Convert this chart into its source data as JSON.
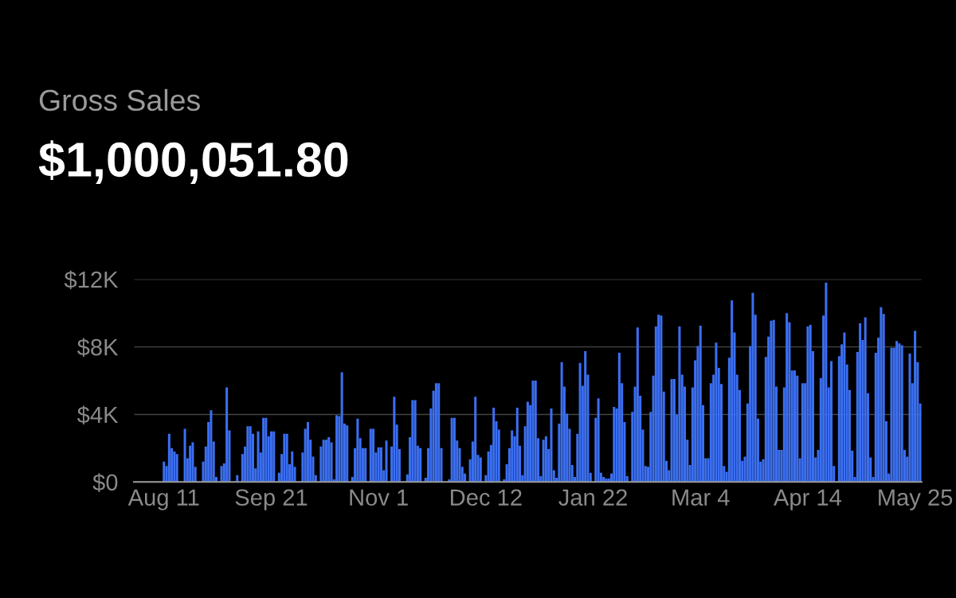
{
  "chart_data": {
    "type": "bar",
    "title": "Gross Sales",
    "subtitle": "$1,000,051.80",
    "categories": [
      null,
      null,
      null,
      null,
      null,
      null,
      null,
      null,
      null,
      null,
      null,
      "Aug 11",
      null,
      null,
      null,
      null,
      null,
      null,
      null,
      null,
      null,
      null,
      null,
      null,
      null,
      null,
      null,
      null,
      null,
      null,
      null,
      null,
      null,
      null,
      null,
      null,
      null,
      null,
      null,
      null,
      null,
      null,
      null,
      null,
      null,
      null,
      null,
      null,
      null,
      null,
      null,
      null,
      "Sep 21",
      null,
      null,
      null,
      null,
      null,
      null,
      null,
      null,
      null,
      null,
      null,
      null,
      null,
      null,
      null,
      null,
      null,
      null,
      null,
      null,
      null,
      null,
      null,
      null,
      null,
      null,
      null,
      null,
      null,
      null,
      null,
      null,
      null,
      null,
      null,
      null,
      null,
      null,
      null,
      null,
      "Nov 1",
      null,
      null,
      null,
      null,
      null,
      null,
      null,
      null,
      null,
      null,
      null,
      null,
      null,
      null,
      null,
      null,
      null,
      null,
      null,
      null,
      null,
      null,
      null,
      null,
      null,
      null,
      null,
      null,
      null,
      null,
      null,
      null,
      null,
      null,
      null,
      null,
      null,
      null,
      null,
      null,
      "Dec 12",
      null,
      null,
      null,
      null,
      null,
      null,
      null,
      null,
      null,
      null,
      null,
      null,
      null,
      null,
      null,
      null,
      null,
      null,
      null,
      null,
      null,
      null,
      null,
      null,
      null,
      null,
      null,
      null,
      null,
      null,
      null,
      null,
      null,
      null,
      null,
      null,
      null,
      null,
      null,
      null,
      "Jan 22",
      null,
      null,
      null,
      null,
      null,
      null,
      null,
      null,
      null,
      null,
      null,
      null,
      null,
      null,
      null,
      null,
      null,
      null,
      null,
      null,
      null,
      null,
      null,
      null,
      null,
      null,
      null,
      null,
      null,
      null,
      null,
      null,
      null,
      null,
      null,
      null,
      null,
      null,
      null,
      null,
      "Mar 4",
      null,
      null,
      null,
      null,
      null,
      null,
      null,
      null,
      null,
      null,
      null,
      null,
      null,
      null,
      null,
      null,
      null,
      null,
      null,
      null,
      null,
      null,
      null,
      null,
      null,
      null,
      null,
      null,
      null,
      null,
      null,
      null,
      null,
      null,
      null,
      null,
      null,
      null,
      null,
      null,
      "Apr 14",
      null,
      null,
      null,
      null,
      null,
      null,
      null,
      null,
      null,
      null,
      null,
      null,
      null,
      null,
      null,
      null,
      null,
      null,
      null,
      null,
      null,
      null,
      null,
      null,
      null,
      null,
      null,
      null,
      null,
      null,
      null,
      null,
      null,
      null,
      null,
      null,
      null,
      null,
      null,
      null,
      "May 25",
      null,
      null
    ],
    "values": [
      0,
      0,
      0,
      0,
      0,
      0,
      0,
      0,
      0,
      0,
      0,
      1200,
      950,
      2850,
      2000,
      1800,
      1650,
      0,
      0,
      3150,
      1400,
      2150,
      2350,
      900,
      0,
      0,
      1200,
      2100,
      3550,
      4250,
      2400,
      300,
      0,
      950,
      1100,
      5600,
      3050,
      0,
      0,
      400,
      0,
      1650,
      2100,
      3300,
      3300,
      2850,
      800,
      3000,
      1750,
      3800,
      3800,
      2700,
      3000,
      3000,
      0,
      550,
      1650,
      2850,
      2850,
      1050,
      1800,
      900,
      null,
      0,
      1750,
      3150,
      3550,
      2500,
      1500,
      400,
      0,
      2100,
      2500,
      2500,
      2650,
      2350,
      150,
      3950,
      3900,
      6500,
      3450,
      3350,
      0,
      300,
      2000,
      3750,
      2600,
      2000,
      2000,
      0,
      3150,
      3150,
      1750,
      2050,
      2050,
      700,
      2450,
      null,
      2100,
      5050,
      3400,
      1950,
      0,
      0,
      450,
      2650,
      4850,
      4850,
      2150,
      2000,
      0,
      250,
      2000,
      4350,
      5400,
      5850,
      5850,
      2000,
      0,
      0,
      150,
      3800,
      3800,
      2450,
      2000,
      900,
      500,
      null,
      1350,
      2400,
      5050,
      1600,
      1450,
      0,
      400,
      1800,
      2200,
      4400,
      3600,
      3100,
      0,
      150,
      1050,
      2000,
      3050,
      2700,
      4400,
      2150,
      400,
      3300,
      4750,
      4550,
      6000,
      6000,
      2600,
      350,
      2500,
      2700,
      1950,
      4350,
      700,
      250,
      3450,
      7100,
      5650,
      4050,
      3150,
      1000,
      300,
      2850,
      7050,
      5700,
      7750,
      6350,
      550,
      null,
      3800,
      4950,
      550,
      300,
      200,
      200,
      500,
      4450,
      4350,
      7650,
      5850,
      3550,
      350,
      null,
      4150,
      5650,
      9150,
      5100,
      3100,
      950,
      900,
      4150,
      6300,
      9200,
      9900,
      9850,
      5350,
      1250,
      700,
      6100,
      6100,
      4000,
      9200,
      6350,
      5650,
      2500,
      1000,
      5600,
      7200,
      8050,
      9250,
      4550,
      1400,
      1400,
      5850,
      6350,
      8250,
      6750,
      5800,
      950,
      600,
      7350,
      10750,
      8850,
      6350,
      5450,
      1250,
      1500,
      4650,
      8050,
      11200,
      9900,
      3750,
      1200,
      1350,
      7400,
      8600,
      9550,
      9600,
      5650,
      1900,
      1900,
      5600,
      10000,
      9450,
      6600,
      6600,
      6300,
      1400,
      5850,
      5850,
      9200,
      9300,
      7750,
      1450,
      1900,
      6150,
      9850,
      11800,
      5600,
      7150,
      950,
      0,
      7450,
      8150,
      8850,
      6950,
      5450,
      1850,
      300,
      7700,
      9400,
      8400,
      9750,
      5250,
      1450,
      300,
      7650,
      8550,
      10350,
      9950,
      3600,
      500,
      7950,
      7950,
      8350,
      8200,
      8100,
      1900,
      1500,
      7600,
      5850,
      8950,
      7100,
      4650
    ],
    "color": "#3b6ff2",
    "ylim": [
      0,
      12000
    ],
    "yticks": [
      {
        "value": 0,
        "label": "$0"
      },
      {
        "value": 4000,
        "label": "$4K"
      },
      {
        "value": 8000,
        "label": "$8K"
      },
      {
        "value": 12000,
        "label": "$12K"
      }
    ],
    "grid": "y"
  }
}
